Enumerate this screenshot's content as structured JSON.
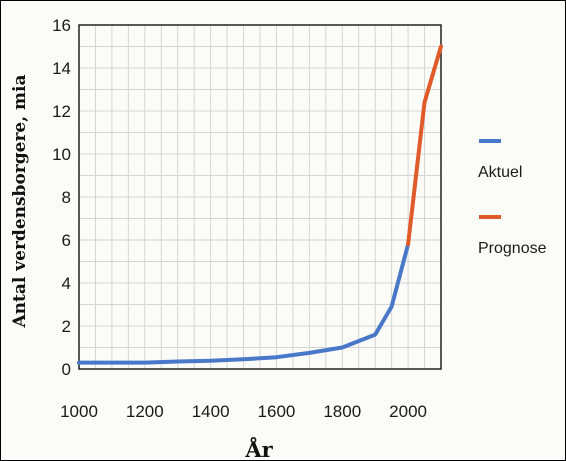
{
  "chart_data": {
    "type": "line",
    "title": "",
    "xlabel": "År",
    "ylabel": "Antal verdensborgere, mia",
    "xlim": [
      1000,
      2100
    ],
    "ylim": [
      0,
      16
    ],
    "x_ticks": [
      1000,
      1200,
      1400,
      1600,
      1800,
      2000
    ],
    "y_ticks": [
      0,
      2,
      4,
      6,
      8,
      10,
      12,
      14,
      16
    ],
    "grid": true,
    "legend_position": "right",
    "series": [
      {
        "name": "Aktuel",
        "color": "#4a78c8",
        "x": [
          1000,
          1100,
          1200,
          1300,
          1400,
          1500,
          1600,
          1700,
          1800,
          1900,
          1950,
          2000
        ],
        "y": [
          0.3,
          0.3,
          0.3,
          0.35,
          0.38,
          0.45,
          0.55,
          0.75,
          1.0,
          1.6,
          2.9,
          5.8
        ]
      },
      {
        "name": "Prognose",
        "color": "#e05a2a",
        "x": [
          2000,
          2050,
          2100
        ],
        "y": [
          5.8,
          12.4,
          15.0
        ]
      }
    ]
  }
}
